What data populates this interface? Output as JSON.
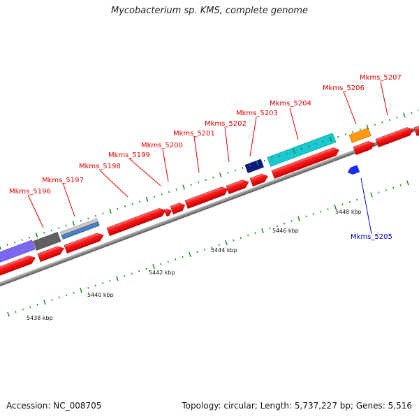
{
  "title": "Mycobacterium sp. KMS, complete genome",
  "accession": "Accession: NC_008705",
  "summary": "Topology: circular; Length: 5,737,227 bp; Genes: 5,516",
  "colors": {
    "forward_gene": "#ff1a1a",
    "backbone": "#8a8a8a",
    "tick": "#1a8a1a",
    "label_forward": "#dd0000",
    "label_reverse": "#0000cc",
    "cog_purple": "#7b68ee",
    "cog_darkgray": "#606060",
    "cog_lightgray": "#c8c8c8",
    "cog_steelblue": "#4a7fc0",
    "cog_navy": "#0a1a80",
    "cog_cyan": "#19c8d0",
    "cog_orange": "#ff9a10",
    "cog_blue": "#1a30ff"
  },
  "gene_labels": [
    {
      "id": "Mkms_5196",
      "strand": "forward"
    },
    {
      "id": "Mkms_5197",
      "strand": "forward"
    },
    {
      "id": "Mkms_5198",
      "strand": "forward"
    },
    {
      "id": "Mkms_5199",
      "strand": "forward"
    },
    {
      "id": "Mkms_5200",
      "strand": "forward"
    },
    {
      "id": "Mkms_5201",
      "strand": "forward"
    },
    {
      "id": "Mkms_5202",
      "strand": "forward"
    },
    {
      "id": "Mkms_5203",
      "strand": "forward"
    },
    {
      "id": "Mkms_5204",
      "strand": "forward"
    },
    {
      "id": "Mkms_5205",
      "strand": "reverse"
    },
    {
      "id": "Mkms_5206",
      "strand": "forward"
    },
    {
      "id": "Mkms_5207",
      "strand": "forward"
    }
  ],
  "scale_labels": [
    "5438 kbp",
    "5440 kbp",
    "5442 kbp",
    "5444 kbp",
    "5446 kbp",
    "5448 kbp"
  ]
}
